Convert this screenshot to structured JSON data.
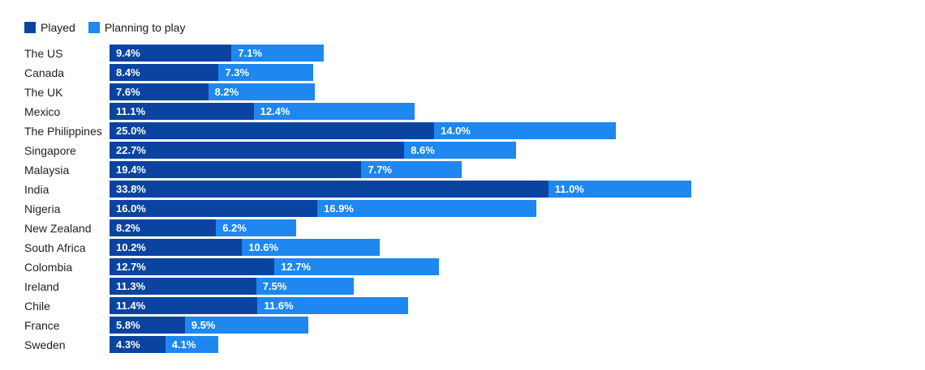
{
  "colors": {
    "played": "#0B44A0",
    "planning": "#1E87F0",
    "label_text": "#222222",
    "value_text": "#ffffff"
  },
  "legend": {
    "played_label": "Played",
    "planning_label": "Planning to play"
  },
  "chart_data": {
    "type": "bar",
    "orientation": "horizontal",
    "stacked": true,
    "title": "",
    "xlabel": "",
    "ylabel": "",
    "value_format": "percent_one_decimal",
    "axes_hidden": true,
    "grid": false,
    "legend_position": "top-left",
    "xlim": [
      0,
      62
    ],
    "categories": [
      "The US",
      "Canada",
      "The UK",
      "Mexico",
      "The Philippines",
      "Singapore",
      "Malaysia",
      "India",
      "Nigeria",
      "New Zealand",
      "South Africa",
      "Colombia",
      "Ireland",
      "Chile",
      "France",
      "Sweden"
    ],
    "series": [
      {
        "name": "Played",
        "values": [
          9.4,
          8.4,
          7.6,
          11.1,
          25.0,
          22.7,
          19.4,
          33.8,
          16.0,
          8.2,
          10.2,
          12.7,
          11.3,
          11.4,
          5.8,
          4.3
        ]
      },
      {
        "name": "Planning to play",
        "values": [
          7.1,
          7.3,
          8.2,
          12.4,
          14.0,
          8.6,
          7.7,
          11.0,
          16.9,
          6.2,
          10.6,
          12.7,
          7.5,
          11.6,
          9.5,
          4.1
        ]
      }
    ]
  }
}
